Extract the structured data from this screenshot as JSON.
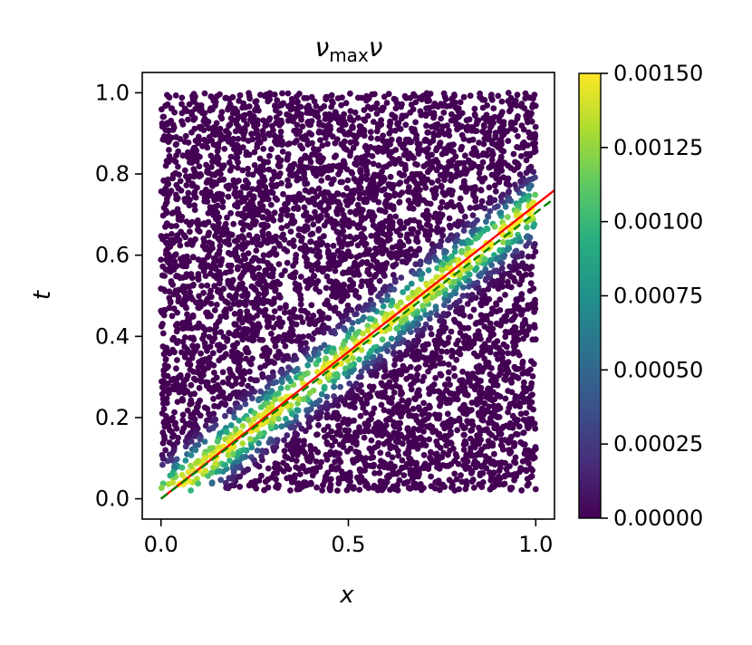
{
  "chart_data": {
    "type": "scatter",
    "title": "ν_maxν",
    "title_main": "ν",
    "title_sub": "max",
    "title_tail": "ν",
    "xlabel": "x",
    "ylabel": "t",
    "xlim": [
      -0.05,
      1.05
    ],
    "ylim": [
      -0.05,
      1.05
    ],
    "xticks": [
      0.0,
      0.5,
      1.0
    ],
    "xtick_labels": [
      "0.0",
      "0.5",
      "1.0"
    ],
    "yticks": [
      0.0,
      0.2,
      0.4,
      0.6,
      0.8,
      1.0
    ],
    "ytick_labels": [
      "0.0",
      "0.2",
      "0.4",
      "0.6",
      "0.8",
      "1.0"
    ],
    "grid": false,
    "colormap": "viridis",
    "colorbar": {
      "range": [
        0.0,
        0.0015
      ],
      "ticks": [
        0.0,
        0.00025,
        0.0005,
        0.00075,
        0.001,
        0.00125,
        0.0015
      ],
      "tick_labels": [
        "0.00000",
        "0.00025",
        "0.00050",
        "0.00075",
        "0.00100",
        "0.00125",
        "0.00150"
      ]
    },
    "points": {
      "count": 5500,
      "x_range": [
        0.0,
        1.0
      ],
      "t_range": [
        0.02,
        1.0
      ],
      "description_of_value": "value peaks near the band t ≈ 0.72·x"
    },
    "lines": [
      {
        "style": "solid",
        "color": "#ff0000",
        "x": [
          0.0,
          1.05
        ],
        "y": [
          0.0,
          0.76
        ]
      },
      {
        "style": "dashed",
        "color": "#008000",
        "x": [
          0.0,
          1.05
        ],
        "y": [
          0.0,
          0.74
        ]
      }
    ]
  }
}
